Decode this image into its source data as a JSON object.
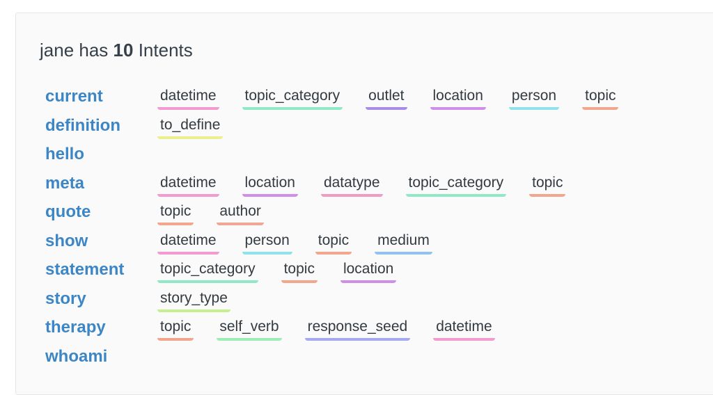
{
  "header": {
    "prefix": "jane has",
    "count": "10",
    "suffix": "Intents"
  },
  "intents": [
    {
      "name": "current",
      "slots": [
        {
          "label": "datetime",
          "color": "#f39ad1"
        },
        {
          "label": "topic_category",
          "color": "#8fe9c6"
        },
        {
          "label": "outlet",
          "color": "#a98be8"
        },
        {
          "label": "location",
          "color": "#cf8fe9"
        },
        {
          "label": "person",
          "color": "#8ee3ea"
        },
        {
          "label": "topic",
          "color": "#f3a68e"
        }
      ]
    },
    {
      "name": "definition",
      "slots": [
        {
          "label": "to_define",
          "color": "#eaf08e"
        }
      ]
    },
    {
      "name": "hello",
      "slots": []
    },
    {
      "name": "meta",
      "slots": [
        {
          "label": "datetime",
          "color": "#f39ad1"
        },
        {
          "label": "location",
          "color": "#cf8fe9"
        },
        {
          "label": "datatype",
          "color": "#f19ac4"
        },
        {
          "label": "topic_category",
          "color": "#8fe9c6"
        },
        {
          "label": "topic",
          "color": "#f3a68e"
        }
      ]
    },
    {
      "name": "quote",
      "slots": [
        {
          "label": "topic",
          "color": "#f3a68e"
        },
        {
          "label": "author",
          "color": "#f1a594"
        }
      ]
    },
    {
      "name": "show",
      "slots": [
        {
          "label": "datetime",
          "color": "#f39ad1"
        },
        {
          "label": "person",
          "color": "#8ee3ea"
        },
        {
          "label": "topic",
          "color": "#f3a68e"
        },
        {
          "label": "medium",
          "color": "#93c2ef"
        }
      ]
    },
    {
      "name": "statement",
      "slots": [
        {
          "label": "topic_category",
          "color": "#8fe9c6"
        },
        {
          "label": "topic",
          "color": "#f3a68e"
        },
        {
          "label": "location",
          "color": "#cf8fe9"
        }
      ]
    },
    {
      "name": "story",
      "slots": [
        {
          "label": "story_type",
          "color": "#c6ef8e"
        }
      ]
    },
    {
      "name": "therapy",
      "slots": [
        {
          "label": "topic",
          "color": "#f3a68e"
        },
        {
          "label": "self_verb",
          "color": "#9ceeb4"
        },
        {
          "label": "response_seed",
          "color": "#a5a9ee"
        },
        {
          "label": "datetime",
          "color": "#f39ad1"
        }
      ]
    },
    {
      "name": "whoami",
      "slots": []
    }
  ]
}
